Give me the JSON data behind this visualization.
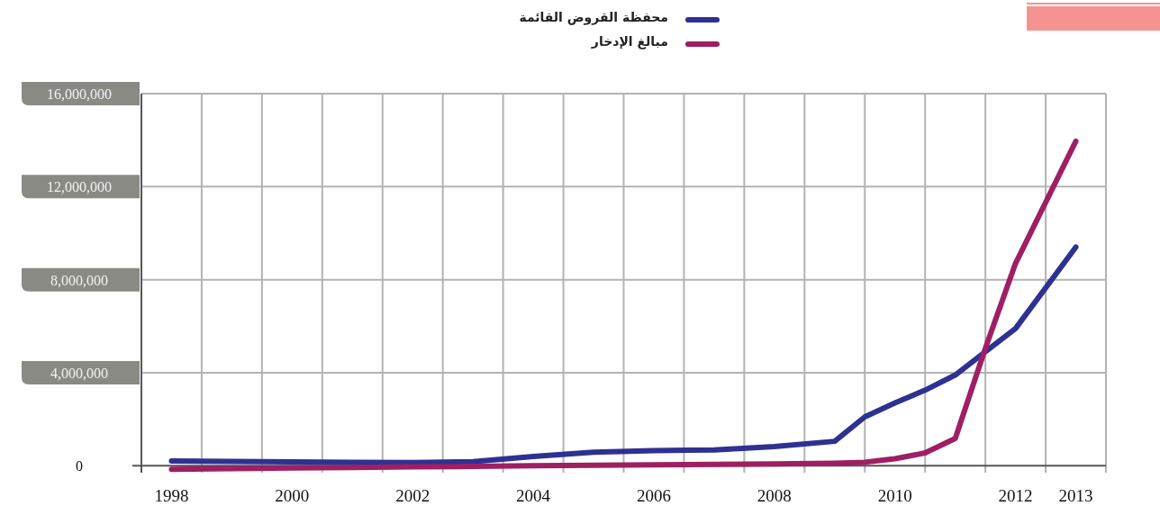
{
  "chart_data": {
    "type": "line",
    "x": [
      1998,
      1999,
      2000,
      2001,
      2002,
      2003,
      2004,
      2005,
      2006,
      2007,
      2008,
      2009,
      2009.5,
      2010,
      2010.5,
      2011,
      2011.5,
      2012,
      2013
    ],
    "series": [
      {
        "name": "محفظة القروض القائمة",
        "color": "#2e3192",
        "values": [
          200000,
          180000,
          160000,
          150000,
          140000,
          170000,
          400000,
          580000,
          650000,
          680000,
          820000,
          1050000,
          2100000,
          2700000,
          3250000,
          3900000,
          4900000,
          5900000,
          9400000
        ]
      },
      {
        "name": "مبالغ الإدخار",
        "color": "#9e1f63",
        "values": [
          -150000,
          -130000,
          -100000,
          -80000,
          -50000,
          -30000,
          0,
          20000,
          40000,
          60000,
          80000,
          110000,
          150000,
          300000,
          550000,
          1170000,
          5050000,
          8700000,
          13950000
        ]
      }
    ],
    "xlim": [
      1997.5,
      2013.5
    ],
    "xticks": [
      1998,
      2000,
      2002,
      2004,
      2006,
      2008,
      2010,
      2012,
      2013,
      {
        "value": 1998.5,
        "label": null
      },
      {
        "value": 1999.5,
        "label": null
      },
      {
        "value": 2000.5,
        "label": null
      },
      {
        "value": 2001.5,
        "label": null
      },
      {
        "value": 2002.5,
        "label": null
      },
      {
        "value": 2003.5,
        "label": null
      },
      {
        "value": 2004.5,
        "label": null
      },
      {
        "value": 2005.5,
        "label": null
      },
      {
        "value": 2006.5,
        "label": null
      },
      {
        "value": 2007.5,
        "label": null
      },
      {
        "value": 2008.5,
        "label": null
      },
      {
        "value": 2009.5,
        "label": null
      },
      {
        "value": 2010.5,
        "label": null
      },
      {
        "value": 2011.5,
        "label": null
      },
      {
        "value": 2012.5,
        "label": null
      },
      {
        "value": 2013.5,
        "label": null
      }
    ],
    "ylim": [
      -300000,
      16000000
    ],
    "yticks": [
      0,
      {
        "value": 4000000,
        "label": "4,000,000"
      },
      {
        "value": 8000000,
        "label": "8,000,000"
      },
      {
        "value": 12000000,
        "label": "12,000,000"
      },
      {
        "value": 16000000,
        "label": "16,000,000"
      }
    ],
    "grid": true,
    "legend": "top",
    "marker": "none",
    "line_style": "solid"
  }
}
